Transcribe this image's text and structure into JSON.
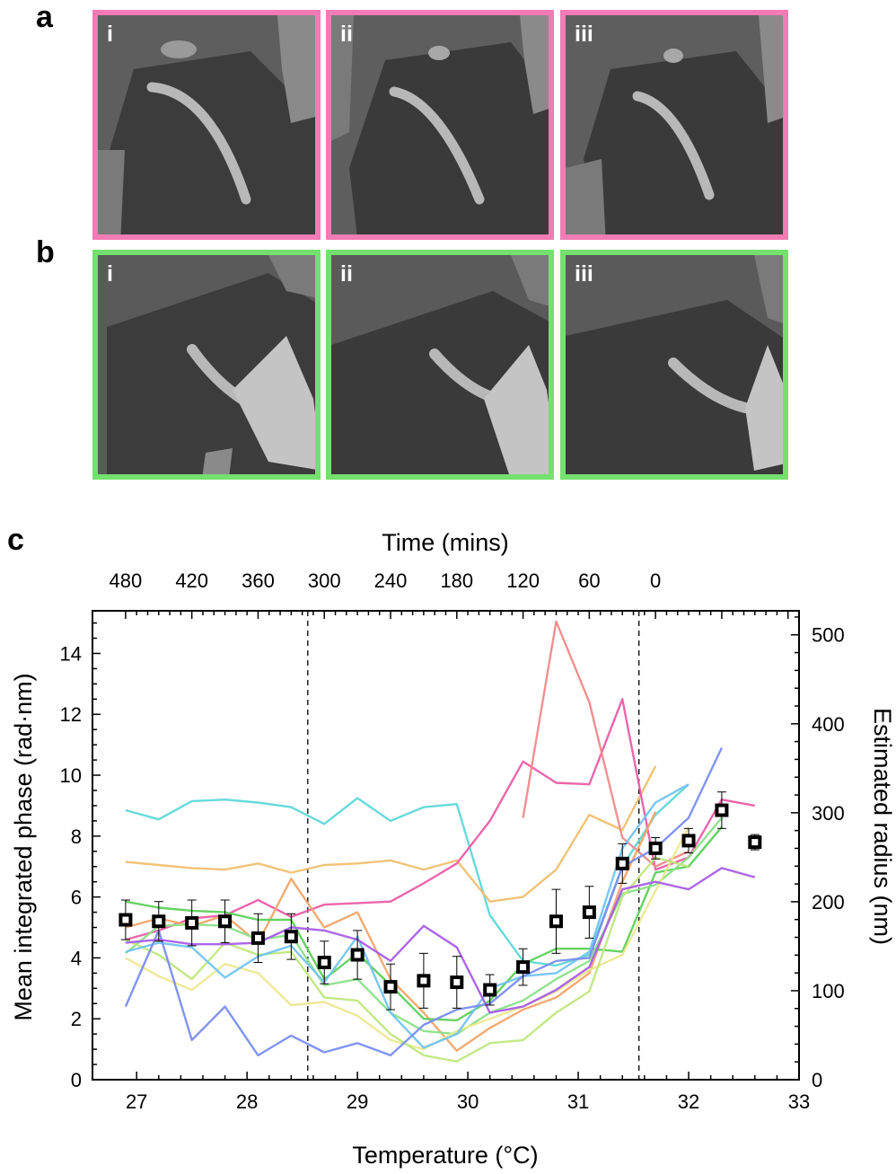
{
  "panels": {
    "a": {
      "letter": "a",
      "border_color": "#f27bb5",
      "tiles": [
        "i",
        "ii",
        "iii"
      ]
    },
    "b": {
      "letter": "b",
      "border_color": "#74e06e",
      "tiles": [
        "i",
        "ii",
        "iii"
      ]
    },
    "c": {
      "letter": "c"
    }
  },
  "chart_data": {
    "type": "line",
    "xlabel": "Temperature (°C)",
    "ylabel": "Mean integrated phase (rad·nm)",
    "y2label": "Estimated radius (nm)",
    "top_xlabel": "Time (mins)",
    "xlim": [
      26.6,
      33
    ],
    "ylim": [
      0,
      15.4
    ],
    "y2lim": [
      0,
      527
    ],
    "xticks": [
      "27",
      "28",
      "29",
      "30",
      "31",
      "32",
      "33"
    ],
    "yticks": [
      "0",
      "2",
      "4",
      "6",
      "8",
      "10",
      "12",
      "14"
    ],
    "y2ticks": [
      "0",
      "100",
      "200",
      "300",
      "400",
      "500"
    ],
    "top_ticks": [
      "480",
      "420",
      "360",
      "300",
      "240",
      "180",
      "120",
      "60",
      "0"
    ],
    "top_tick_positions": [
      26.9,
      27.5,
      28.1,
      28.7,
      29.3,
      29.9,
      30.5,
      31.1,
      31.7
    ],
    "vlines": [
      28.55,
      31.55
    ],
    "series": [
      {
        "name": "cyan",
        "color": "#5fd8d8",
        "x": [
          26.9,
          27.2,
          27.5,
          27.8,
          28.1,
          28.4,
          28.7,
          29.0,
          29.3,
          29.6,
          29.9,
          30.2,
          30.5,
          30.8,
          31.1,
          31.4,
          31.7,
          32.0
        ],
        "y": [
          8.85,
          8.55,
          9.15,
          9.2,
          9.1,
          8.95,
          8.4,
          9.25,
          8.5,
          8.95,
          9.05,
          5.4,
          3.9,
          3.75,
          4.1,
          7.0,
          8.7,
          9.7
        ]
      },
      {
        "name": "orange-light",
        "color": "#f0c070",
        "x": [
          26.9,
          27.2,
          27.5,
          27.8,
          28.1,
          28.4,
          28.7,
          29.0,
          29.3,
          29.6,
          29.9,
          30.2,
          30.5,
          30.8,
          31.1,
          31.4,
          31.7
        ],
        "y": [
          7.15,
          7.05,
          6.95,
          6.9,
          7.1,
          6.8,
          7.05,
          7.1,
          7.2,
          6.9,
          7.2,
          5.85,
          6.0,
          6.9,
          8.7,
          8.2,
          10.3
        ]
      },
      {
        "name": "magenta",
        "color": "#ea5ea6",
        "x": [
          26.9,
          27.2,
          27.5,
          27.8,
          28.1,
          28.4,
          28.7,
          29.0,
          29.3,
          29.6,
          29.9,
          30.2,
          30.5,
          30.8,
          31.1,
          31.4,
          31.7,
          32.0,
          32.3,
          32.6
        ],
        "y": [
          4.6,
          4.9,
          5.3,
          5.4,
          5.9,
          5.35,
          5.75,
          5.8,
          5.85,
          6.45,
          7.1,
          8.5,
          10.45,
          9.75,
          9.7,
          12.5,
          6.9,
          7.3,
          9.2,
          9.0
        ]
      },
      {
        "name": "salmon",
        "color": "#f08a8a",
        "x": [
          30.5,
          30.8,
          31.1,
          31.4,
          31.7,
          32.0
        ],
        "y": [
          8.6,
          15.05,
          12.4,
          7.95,
          7.0,
          7.5
        ]
      },
      {
        "name": "orange",
        "color": "#f2a56a",
        "x": [
          26.9,
          27.2,
          27.5,
          27.8,
          28.1,
          28.4,
          28.7,
          29.0,
          29.3,
          29.6,
          29.9,
          30.2,
          30.5,
          30.8,
          31.1,
          31.4,
          31.7
        ],
        "y": [
          5.0,
          5.3,
          5.05,
          5.4,
          4.5,
          6.6,
          5.0,
          5.5,
          3.3,
          2.2,
          0.95,
          1.7,
          2.3,
          2.7,
          3.5,
          6.5,
          8.8
        ]
      },
      {
        "name": "green",
        "color": "#5ed05a",
        "x": [
          26.9,
          27.2,
          27.5,
          27.8,
          28.1,
          28.4,
          28.7,
          29.0,
          29.3,
          29.6,
          29.9,
          30.2,
          30.5,
          30.8,
          31.1,
          31.4,
          31.7,
          32.0,
          32.3
        ],
        "y": [
          5.85,
          5.65,
          5.55,
          5.5,
          5.25,
          5.25,
          3.3,
          4.15,
          3.1,
          2.0,
          1.95,
          2.6,
          3.8,
          4.3,
          4.3,
          4.2,
          6.8,
          7.0,
          8.3
        ]
      },
      {
        "name": "mint",
        "color": "#8ce08a",
        "x": [
          26.9,
          27.2,
          27.5,
          27.8,
          28.1,
          28.4,
          28.7,
          29.0,
          29.3,
          29.6,
          29.9,
          30.2,
          30.5,
          30.8,
          31.1,
          31.4,
          31.7,
          32.0,
          32.3
        ],
        "y": [
          4.15,
          5.05,
          5.1,
          5.05,
          4.6,
          4.75,
          3.1,
          3.3,
          2.2,
          1.6,
          1.5,
          2.2,
          2.6,
          3.3,
          3.9,
          6.1,
          6.4,
          7.3,
          8.6
        ]
      },
      {
        "name": "yellow",
        "color": "#ece890",
        "x": [
          26.9,
          27.2,
          27.5,
          27.8,
          28.1,
          28.4,
          28.7,
          29.0,
          29.3,
          29.6,
          29.9,
          30.2,
          30.5,
          30.8,
          31.1,
          31.4,
          31.7,
          32.0
        ],
        "y": [
          4.0,
          3.4,
          2.95,
          3.8,
          3.5,
          2.45,
          2.55,
          2.1,
          1.3,
          1.0,
          1.6,
          2.0,
          2.4,
          2.9,
          3.6,
          4.1,
          6.2,
          8.3
        ]
      },
      {
        "name": "lime",
        "color": "#c0e880",
        "x": [
          26.9,
          27.2,
          27.5,
          27.8,
          28.1,
          28.4,
          28.7,
          29.0,
          29.3,
          29.6,
          29.9,
          30.2,
          30.5,
          30.8,
          31.1,
          31.4,
          31.7,
          32.0
        ],
        "y": [
          4.6,
          4.1,
          3.3,
          4.5,
          4.1,
          4.2,
          2.7,
          2.6,
          1.5,
          0.8,
          0.6,
          1.2,
          1.3,
          2.2,
          2.9,
          6.0,
          7.3,
          7.0
        ]
      },
      {
        "name": "sky",
        "color": "#72c4f2",
        "x": [
          26.9,
          27.2,
          27.5,
          27.8,
          28.1,
          28.4,
          28.7,
          29.0,
          29.3,
          29.6,
          29.9,
          30.2,
          30.5,
          30.8,
          31.1,
          31.4,
          31.7,
          32.0
        ],
        "y": [
          4.2,
          4.5,
          4.35,
          3.35,
          4.05,
          4.4,
          3.2,
          4.7,
          2.2,
          1.05,
          1.5,
          3.0,
          3.4,
          3.5,
          4.2,
          7.6,
          9.1,
          9.7
        ]
      },
      {
        "name": "blue",
        "color": "#7a8ef2",
        "x": [
          26.9,
          27.2,
          27.5,
          27.8,
          28.1,
          28.4,
          28.7,
          29.0,
          29.3,
          29.6,
          29.9,
          30.2,
          30.5,
          30.8,
          31.1,
          31.4,
          31.7,
          32.0,
          32.3
        ],
        "y": [
          2.4,
          4.9,
          1.3,
          2.4,
          0.8,
          1.45,
          0.9,
          1.2,
          0.8,
          1.8,
          2.3,
          2.5,
          3.4,
          3.9,
          4.0,
          7.0,
          7.6,
          8.6,
          10.9
        ]
      },
      {
        "name": "purple",
        "color": "#a85ee6",
        "x": [
          26.9,
          27.2,
          27.5,
          27.8,
          28.1,
          28.4,
          28.7,
          29.0,
          29.3,
          29.6,
          29.9,
          30.2,
          30.5,
          30.8,
          31.1,
          31.4,
          31.7,
          32.0,
          32.3,
          32.6
        ],
        "y": [
          4.5,
          4.6,
          4.45,
          4.45,
          4.5,
          5.0,
          4.9,
          4.6,
          3.9,
          5.05,
          4.35,
          2.2,
          2.4,
          2.95,
          3.7,
          6.25,
          6.5,
          6.25,
          6.95,
          6.65
        ]
      },
      {
        "name": "mean",
        "color": "#000000",
        "x": [
          26.9,
          27.2,
          27.5,
          27.8,
          28.1,
          28.4,
          28.7,
          29.0,
          29.3,
          29.6,
          29.9,
          30.2,
          30.5,
          30.8,
          31.1,
          31.4,
          31.7,
          32.0,
          32.3,
          32.6
        ],
        "y": [
          5.25,
          5.2,
          5.15,
          5.2,
          4.65,
          4.7,
          3.85,
          4.1,
          3.05,
          3.25,
          3.2,
          2.95,
          3.7,
          5.2,
          5.5,
          7.1,
          7.6,
          7.85,
          8.85,
          7.8
        ],
        "err": [
          0.65,
          0.65,
          0.75,
          0.7,
          0.8,
          0.75,
          0.7,
          0.8,
          0.75,
          0.9,
          0.85,
          0.5,
          0.6,
          1.05,
          0.85,
          0.65,
          0.35,
          0.4,
          0.6,
          0.25
        ]
      }
    ]
  }
}
